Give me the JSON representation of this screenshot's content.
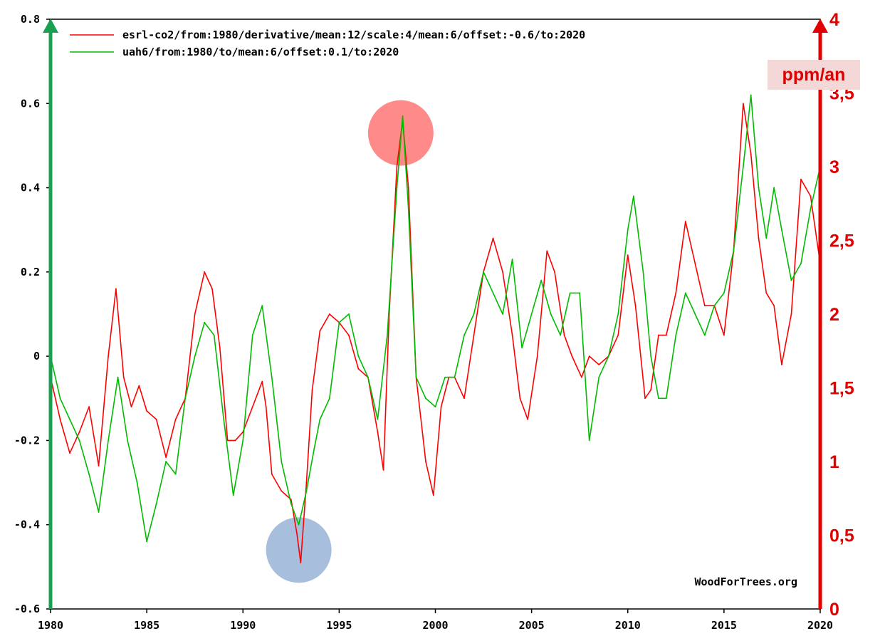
{
  "chart_data": {
    "type": "line",
    "xlim": [
      1980,
      2020
    ],
    "ylim": [
      -0.6,
      0.8
    ],
    "y2lim": [
      0,
      4
    ],
    "x_ticks": [
      "1980",
      "1985",
      "1990",
      "1995",
      "2000",
      "2005",
      "2010",
      "2015",
      "2020"
    ],
    "y_ticks": [
      "-0.6",
      "-0.4",
      "-0.2",
      "0",
      "0.2",
      "0.4",
      "0.6",
      "0.8"
    ],
    "y2_ticks": [
      "0",
      "0,5",
      "1",
      "1,5",
      "2",
      "2,5",
      "3",
      "3,5",
      "4"
    ],
    "y2_unit": "ppm/an",
    "credit": "WoodForTrees.org",
    "left_axis_color": "#1aa050",
    "right_axis_color": "#e00000",
    "legend_placement": "top-left",
    "series": [
      {
        "name": "esrl-co2/from:1980/derivative/mean:12/scale:4/mean:6/offset:-0.6/to:2020",
        "color": "#ff0000",
        "x": [
          1980.0,
          1980.5,
          1981.0,
          1981.5,
          1982.0,
          1982.5,
          1983.0,
          1983.4,
          1983.8,
          1984.2,
          1984.6,
          1985.0,
          1985.5,
          1986.0,
          1986.5,
          1987.0,
          1987.5,
          1988.0,
          1988.4,
          1988.8,
          1989.2,
          1989.6,
          1990.0,
          1990.5,
          1991.0,
          1991.2,
          1991.5,
          1992.0,
          1992.5,
          1992.8,
          1993.0,
          1993.3,
          1993.6,
          1994.0,
          1994.5,
          1995.0,
          1995.5,
          1996.0,
          1996.5,
          1997.0,
          1997.3,
          1997.6,
          1998.0,
          1998.3,
          1998.6,
          1999.0,
          1999.5,
          1999.9,
          2000.3,
          2000.7,
          2001.0,
          2001.5,
          2002.0,
          2002.5,
          2003.0,
          2003.5,
          2004.0,
          2004.4,
          2004.8,
          2005.3,
          2005.8,
          2006.2,
          2006.7,
          2007.1,
          2007.6,
          2008.0,
          2008.5,
          2009.0,
          2009.5,
          2010.0,
          2010.4,
          2010.9,
          2011.2,
          2011.6,
          2012.0,
          2012.5,
          2013.0,
          2013.5,
          2014.0,
          2014.5,
          2015.0,
          2015.5,
          2016.0,
          2016.4,
          2016.8,
          2017.2,
          2017.6,
          2018.0,
          2018.5,
          2019.0,
          2019.5,
          2020.0
        ],
        "values": [
          -0.05,
          -0.15,
          -0.23,
          -0.18,
          -0.12,
          -0.26,
          0.0,
          0.16,
          -0.05,
          -0.12,
          -0.07,
          -0.13,
          -0.15,
          -0.24,
          -0.15,
          -0.1,
          0.1,
          0.2,
          0.16,
          0.02,
          -0.2,
          -0.2,
          -0.18,
          -0.12,
          -0.06,
          -0.12,
          -0.28,
          -0.32,
          -0.34,
          -0.42,
          -0.49,
          -0.3,
          -0.08,
          0.06,
          0.1,
          0.08,
          0.05,
          -0.03,
          -0.05,
          -0.18,
          -0.27,
          0.1,
          0.45,
          0.56,
          0.4,
          -0.05,
          -0.25,
          -0.33,
          -0.12,
          -0.05,
          -0.05,
          -0.1,
          0.05,
          0.2,
          0.28,
          0.2,
          0.05,
          -0.1,
          -0.15,
          0.0,
          0.25,
          0.2,
          0.05,
          0.0,
          -0.05,
          0.0,
          -0.02,
          0.0,
          0.05,
          0.24,
          0.12,
          -0.1,
          -0.08,
          0.05,
          0.05,
          0.15,
          0.32,
          0.22,
          0.12,
          0.12,
          0.05,
          0.25,
          0.6,
          0.48,
          0.28,
          0.15,
          0.12,
          -0.02,
          0.1,
          0.42,
          0.38,
          0.22
        ]
      },
      {
        "name": "uah6/from:1980/to/mean:6/offset:0.1/to:2020",
        "color": "#00bb00",
        "x": [
          1980.0,
          1980.5,
          1981.0,
          1981.5,
          1982.0,
          1982.5,
          1983.0,
          1983.5,
          1984.0,
          1984.5,
          1985.0,
          1985.5,
          1986.0,
          1986.5,
          1987.0,
          1987.5,
          1988.0,
          1988.5,
          1989.0,
          1989.5,
          1990.0,
          1990.5,
          1991.0,
          1991.5,
          1992.0,
          1992.5,
          1992.9,
          1993.3,
          1993.7,
          1994.0,
          1994.5,
          1995.0,
          1995.5,
          1996.0,
          1996.5,
          1997.0,
          1997.5,
          1998.0,
          1998.3,
          1998.6,
          1999.0,
          1999.5,
          2000.0,
          2000.5,
          2001.0,
          2001.5,
          2002.0,
          2002.5,
          2003.0,
          2003.5,
          2004.0,
          2004.5,
          2005.0,
          2005.5,
          2006.0,
          2006.5,
          2007.0,
          2007.5,
          2008.0,
          2008.5,
          2009.0,
          2009.5,
          2010.0,
          2010.3,
          2010.8,
          2011.2,
          2011.6,
          2012.0,
          2012.5,
          2013.0,
          2013.5,
          2014.0,
          2014.5,
          2015.0,
          2015.5,
          2016.0,
          2016.4,
          2016.8,
          2017.2,
          2017.6,
          2018.0,
          2018.5,
          2019.0,
          2019.5,
          2020.0
        ],
        "values": [
          0.0,
          -0.1,
          -0.15,
          -0.2,
          -0.28,
          -0.37,
          -0.2,
          -0.05,
          -0.2,
          -0.3,
          -0.44,
          -0.35,
          -0.25,
          -0.28,
          -0.1,
          0.0,
          0.08,
          0.05,
          -0.15,
          -0.33,
          -0.2,
          0.05,
          0.12,
          -0.05,
          -0.25,
          -0.35,
          -0.4,
          -0.32,
          -0.22,
          -0.15,
          -0.1,
          0.08,
          0.1,
          0.0,
          -0.05,
          -0.15,
          0.05,
          0.4,
          0.57,
          0.35,
          -0.05,
          -0.1,
          -0.12,
          -0.05,
          -0.05,
          0.05,
          0.1,
          0.2,
          0.15,
          0.1,
          0.23,
          0.02,
          0.1,
          0.18,
          0.1,
          0.05,
          0.15,
          0.15,
          -0.2,
          -0.05,
          0.0,
          0.1,
          0.3,
          0.38,
          0.2,
          0.0,
          -0.1,
          -0.1,
          0.05,
          0.15,
          0.1,
          0.05,
          0.12,
          0.15,
          0.25,
          0.45,
          0.62,
          0.4,
          0.28,
          0.4,
          0.3,
          0.18,
          0.22,
          0.35,
          0.45
        ]
      }
    ],
    "highlights": [
      {
        "x": 1998.2,
        "y": 0.53,
        "color": "#ff8a8a"
      },
      {
        "x": 1992.9,
        "y": -0.46,
        "color": "#a8bedd"
      }
    ]
  }
}
